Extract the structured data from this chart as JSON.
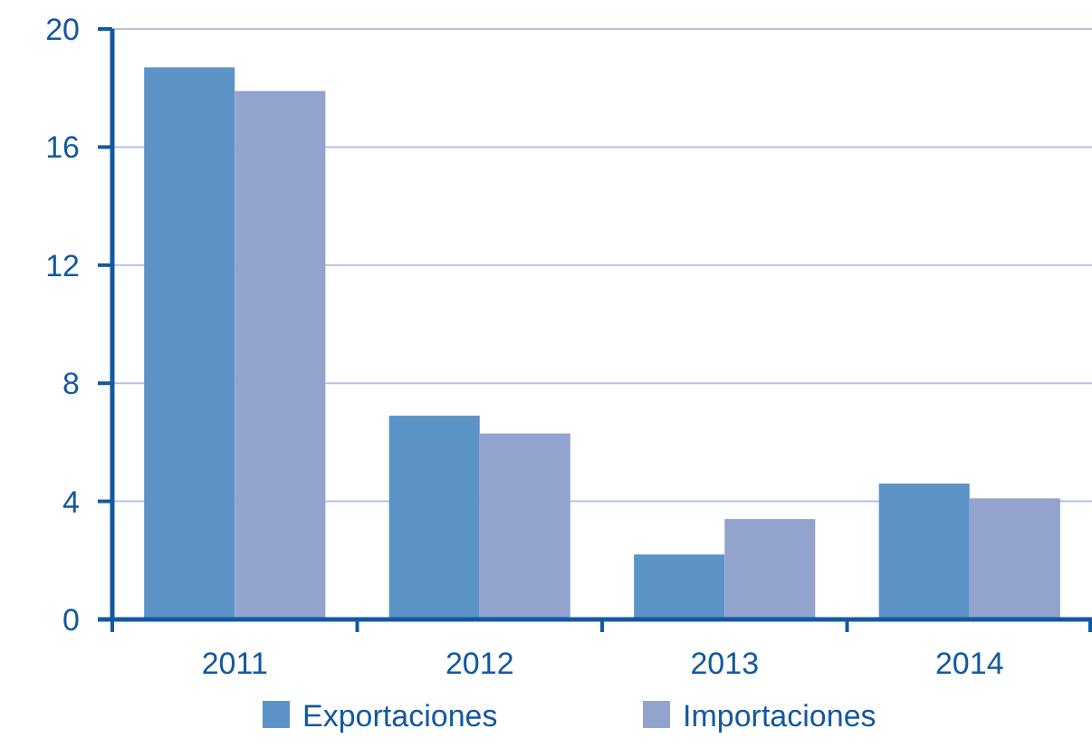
{
  "chart_data": {
    "type": "bar",
    "categories": [
      "2011",
      "2012",
      "2013",
      "2014"
    ],
    "series": [
      {
        "name": "Exportaciones",
        "color": "#5b93c7",
        "values": [
          18.7,
          6.9,
          2.2,
          4.6
        ]
      },
      {
        "name": "Importaciones",
        "color": "#92a4ce",
        "values": [
          17.9,
          6.3,
          3.4,
          4.1
        ]
      }
    ],
    "ylim": [
      0,
      20
    ],
    "yticks": [
      0,
      4,
      8,
      12,
      16,
      20
    ],
    "grid": "y",
    "legend": "bottom"
  }
}
